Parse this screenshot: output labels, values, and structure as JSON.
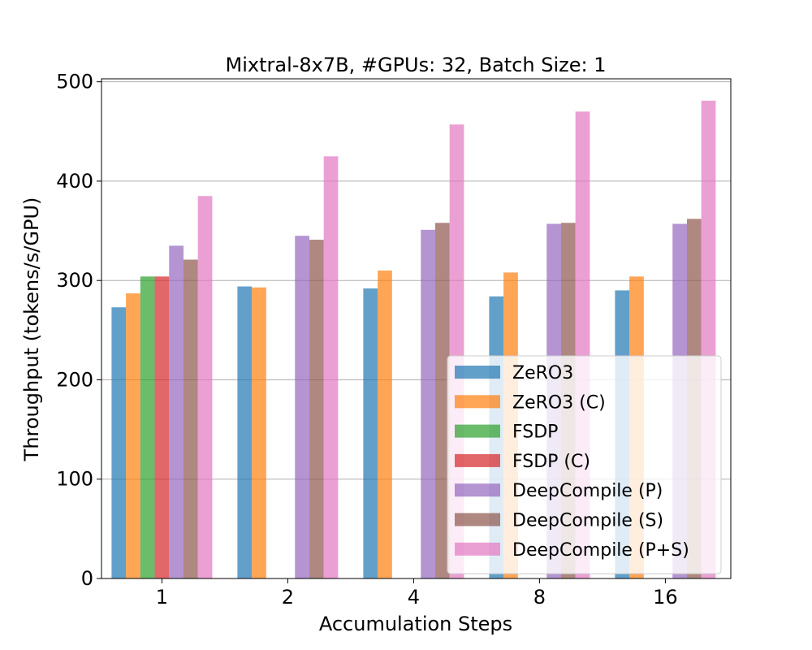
{
  "chart_data": {
    "type": "bar",
    "title": "Mixtral-8x7B, #GPUs: 32, Batch Size: 1",
    "xlabel": "Accumulation Steps",
    "ylabel": "Throughput (tokens/s/GPU)",
    "categories": [
      "1",
      "2",
      "4",
      "8",
      "16"
    ],
    "ylim": [
      0,
      503
    ],
    "yticks": [
      0,
      100,
      200,
      300,
      400,
      500
    ],
    "grid": "horizontal",
    "legend_position": "lower-right",
    "series": [
      {
        "name": "ZeRO3",
        "color": "#1f77b4",
        "values": [
          273,
          294,
          292,
          284,
          290
        ]
      },
      {
        "name": "ZeRO3 (C)",
        "color": "#ff7f0e",
        "values": [
          287,
          293,
          310,
          308,
          304
        ]
      },
      {
        "name": "FSDP",
        "color": "#2ca02c",
        "values": [
          304,
          null,
          null,
          null,
          null
        ]
      },
      {
        "name": "FSDP (C)",
        "color": "#d62728",
        "values": [
          304,
          null,
          null,
          null,
          null
        ]
      },
      {
        "name": "DeepCompile (P)",
        "color": "#9467bd",
        "values": [
          335,
          345,
          351,
          357,
          357
        ]
      },
      {
        "name": "DeepCompile (S)",
        "color": "#8c564b",
        "values": [
          321,
          341,
          358,
          358,
          362
        ]
      },
      {
        "name": "DeepCompile (P+S)",
        "color": "#e377c2",
        "values": [
          385,
          425,
          457,
          470,
          481
        ]
      }
    ]
  }
}
